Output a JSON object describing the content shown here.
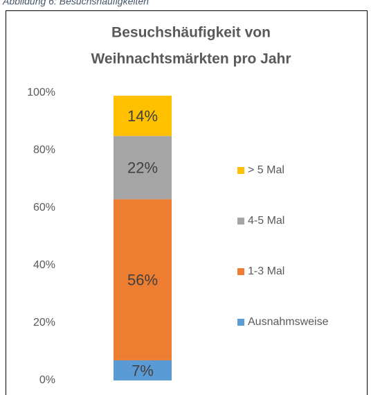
{
  "caption": "Abbildung 6: Besuchshäufigkeiten",
  "chart_data": {
    "type": "stacked_bar",
    "title": [
      "Besuchshäufigkeit von",
      "Weihnachtsmärkten pro Jahr"
    ],
    "categories": [
      null
    ],
    "series": [
      {
        "name": "Ausnahmsweise",
        "color": "#5b9bd5",
        "values": [
          7
        ],
        "value_labels": [
          "7%"
        ]
      },
      {
        "name": "1-3 Mal",
        "color": "#ed7d31",
        "values": [
          56
        ],
        "value_labels": [
          "56%"
        ]
      },
      {
        "name": "4-5 Mal",
        "color": "#a5a5a5",
        "values": [
          22
        ],
        "value_labels": [
          "22%"
        ]
      },
      {
        "name": "> 5 Mal",
        "color": "#ffc000",
        "values": [
          14
        ],
        "value_labels": [
          "14%"
        ]
      }
    ],
    "ylim": [
      0,
      100
    ],
    "yticks": [
      {
        "value": 0,
        "label": "0%"
      },
      {
        "value": 20,
        "label": "20%"
      },
      {
        "value": 40,
        "label": "40%"
      },
      {
        "value": 60,
        "label": "60%"
      },
      {
        "value": 80,
        "label": "80%"
      },
      {
        "value": 100,
        "label": "100%"
      }
    ],
    "grid": false,
    "legend": "right"
  }
}
